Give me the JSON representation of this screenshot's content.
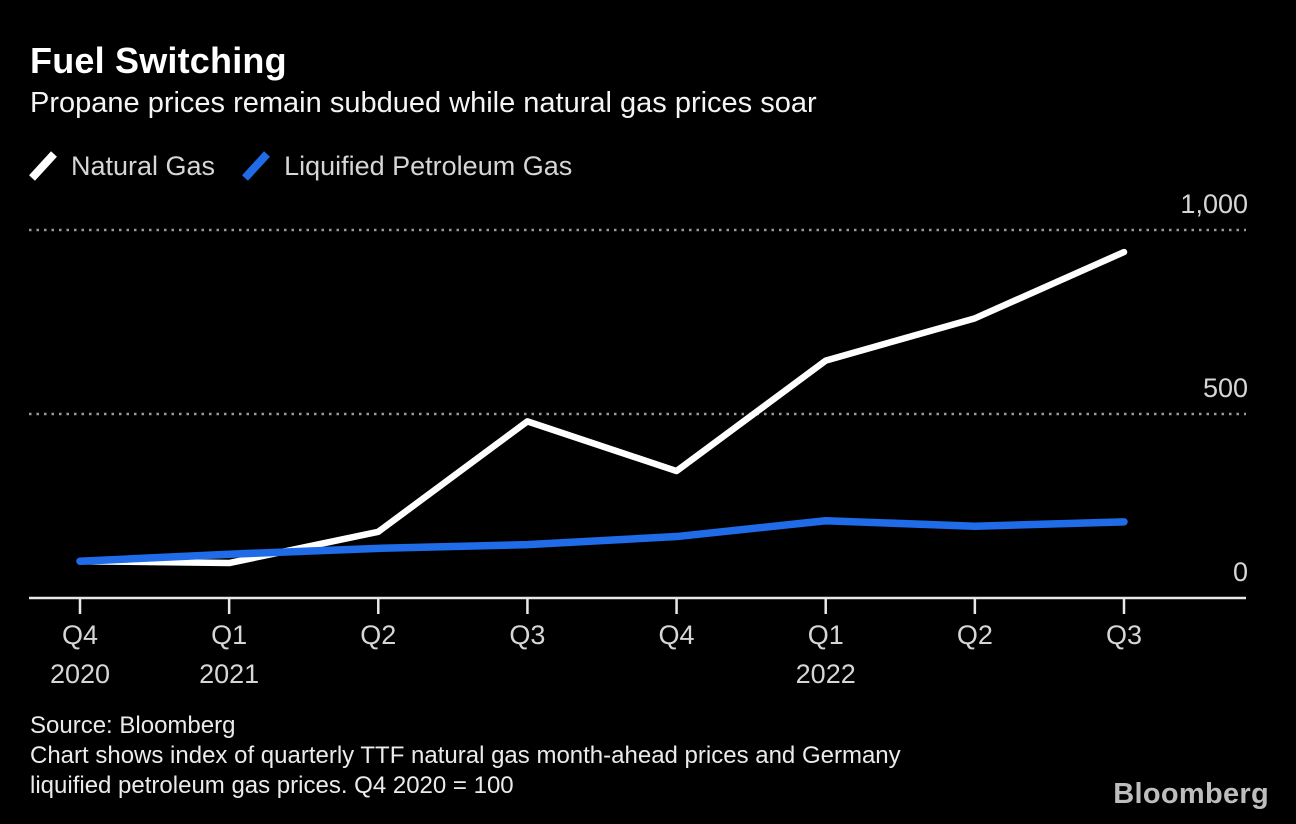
{
  "header": {
    "title": "Fuel Switching",
    "subtitle": "Propane prices remain subdued while natural gas prices soar"
  },
  "legend": [
    {
      "label": "Natural Gas",
      "color": "#ffffff"
    },
    {
      "label": "Liquified Petroleum Gas",
      "color": "#1f6be8"
    }
  ],
  "chart_data": {
    "type": "line",
    "title": "Fuel Switching",
    "subtitle": "Propane prices remain subdued while natural gas prices soar",
    "categories": [
      "Q4 2020",
      "Q1 2021",
      "Q2 2021",
      "Q3 2021",
      "Q4 2021",
      "Q1 2022",
      "Q2 2022",
      "Q3 2022"
    ],
    "series": [
      {
        "name": "Natural Gas",
        "color": "#ffffff",
        "values": [
          100,
          95,
          180,
          480,
          345,
          645,
          760,
          940
        ]
      },
      {
        "name": "Liquified Petroleum Gas",
        "color": "#1f6be8",
        "values": [
          100,
          119,
          135,
          145,
          167,
          210,
          195,
          207
        ]
      }
    ],
    "ylim": [
      0,
      1000
    ],
    "yticks": [
      {
        "value": 0,
        "label": "0"
      },
      {
        "value": 500,
        "label": "500"
      },
      {
        "value": 1000,
        "label": "1,000"
      }
    ],
    "gridline_values": [
      500,
      1000
    ],
    "grid_style": "dotted horizontal gridlines, solid baseline at 0",
    "legend_position": "top-left",
    "xticks": [
      {
        "quarter": "Q4",
        "year": "2020"
      },
      {
        "quarter": "Q1",
        "year": "2021"
      },
      {
        "quarter": "Q2",
        "year": ""
      },
      {
        "quarter": "Q3",
        "year": ""
      },
      {
        "quarter": "Q4",
        "year": ""
      },
      {
        "quarter": "Q1",
        "year": "2022"
      },
      {
        "quarter": "Q2",
        "year": ""
      },
      {
        "quarter": "Q3",
        "year": ""
      }
    ],
    "index_note": "Q4 2020 = 100"
  },
  "footer": {
    "source": "Source: Bloomberg",
    "note_line1": "Chart shows index of quarterly TTF natural gas month-ahead prices and Germany",
    "note_line2": "liquified petroleum gas prices. Q4 2020 = 100",
    "brand": "Bloomberg"
  },
  "colors": {
    "background": "#000000",
    "grid": "#9a9a9a",
    "axis": "#e8e8e8",
    "tick_label": "#d6d6d6",
    "footer_text": "#ebebeb",
    "brand": "#bdbdbd"
  }
}
